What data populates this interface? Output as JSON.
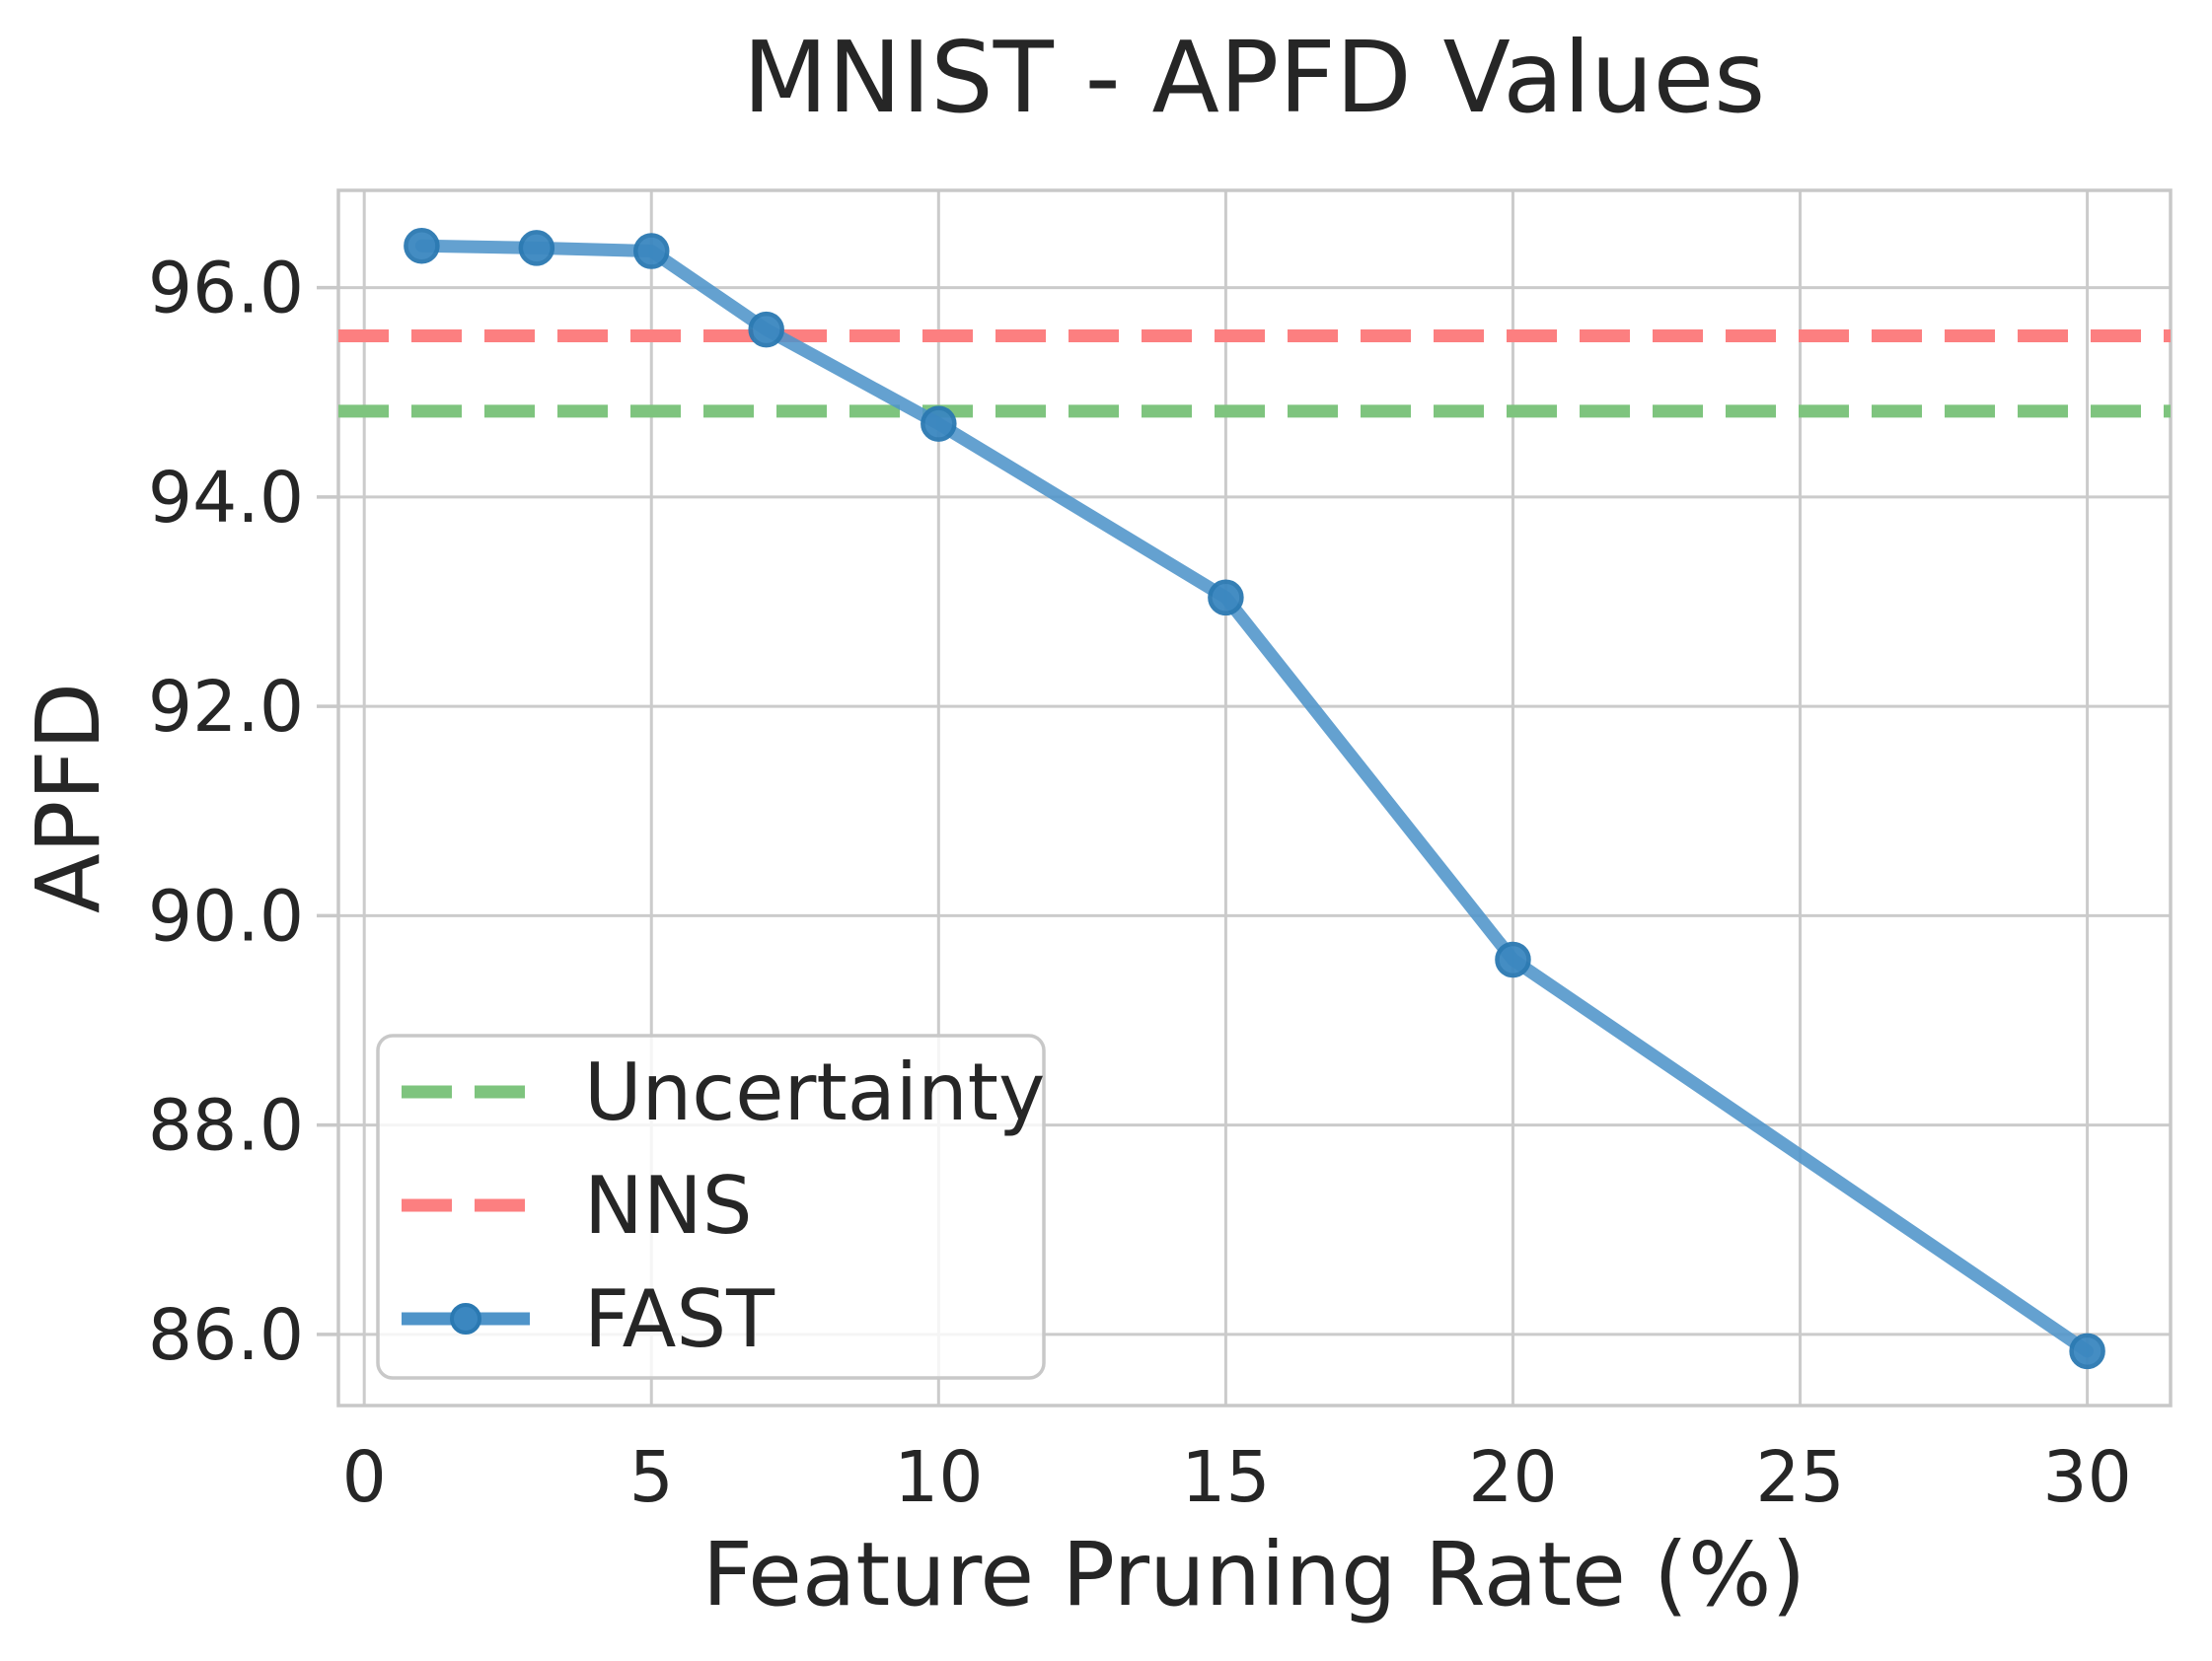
{
  "figure": {
    "background": "#ffffff",
    "text_color": "#262626",
    "grid_color": "#cbcbcb",
    "border_color": "#c8c8c8"
  },
  "chart_data": {
    "type": "line",
    "title": "MNIST - APFD Values",
    "xlabel": "Feature Pruning Rate (%)",
    "ylabel": "APFD",
    "xlim": [
      -0.45,
      31.45
    ],
    "ylim": [
      85.32,
      96.93
    ],
    "xticks": [
      0,
      5,
      10,
      15,
      20,
      25,
      30
    ],
    "xtick_labels": [
      "0",
      "5",
      "10",
      "15",
      "20",
      "25",
      "30"
    ],
    "yticks": [
      86,
      88,
      90,
      92,
      94,
      96
    ],
    "ytick_labels": [
      "86.0",
      "88.0",
      "90.0",
      "92.0",
      "94.0",
      "96.0"
    ],
    "grid": true,
    "legend_position": "lower left",
    "series": [
      {
        "name": "Uncertainty",
        "type": "hline",
        "value": 94.82,
        "color": "#7ec47e",
        "dash": [
          51,
          23
        ],
        "width": 13
      },
      {
        "name": "NNS",
        "type": "hline",
        "value": 95.54,
        "color": "#fc7f80",
        "dash": [
          51,
          23
        ],
        "width": 13
      },
      {
        "name": "FAST",
        "type": "line",
        "x": [
          1,
          3,
          5,
          7,
          10,
          15,
          20,
          30
        ],
        "y": [
          96.4,
          96.38,
          96.35,
          95.6,
          94.7,
          93.04,
          89.58,
          85.84
        ],
        "color": "#4f94c9",
        "line_opacity": 0.88,
        "marker_color": "#3b87c0",
        "marker_edge_color": "#2b79b2",
        "width": 13,
        "marker_radius": 16
      }
    ]
  }
}
